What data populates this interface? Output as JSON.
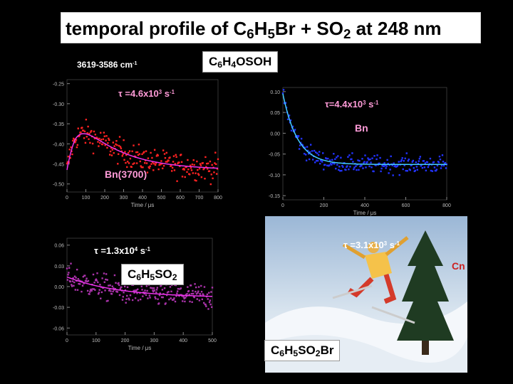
{
  "slide": {
    "title_parts": [
      "temporal profile of C",
      "6",
      "H",
      "5",
      "Br + SO",
      "2",
      " at 248 nm"
    ],
    "wavenumber": "3619-3586 cm",
    "wavenumber_sup": "-1",
    "labels": {
      "c6h4osoh": [
        "C",
        "6",
        "H",
        "4",
        "OSOH"
      ],
      "c6h5so2": [
        "C",
        "6",
        "H",
        "5",
        "SO",
        "2"
      ],
      "c6h5so2br": [
        "C",
        "6",
        "H",
        "5",
        "SO",
        "2",
        "Br"
      ]
    },
    "taus": {
      "a": {
        "prefix": "τ =4.6x10",
        "exp": "3",
        "unit": " s",
        "unit_exp": "-1"
      },
      "b": {
        "prefix": "τ=4.4x10",
        "exp": "3",
        "unit": " s",
        "unit_exp": "-1"
      },
      "c": {
        "prefix": "τ =1.3x10",
        "exp": "4",
        "unit": " s",
        "unit_exp": "-1"
      },
      "d": {
        "prefix": "τ =3.1x10",
        "exp": "3",
        "unit": " s",
        "unit_exp": "-1"
      }
    },
    "tags": {
      "bn": "Bn",
      "bn3700": "Bn(3700)",
      "cn": "Cn"
    },
    "colors": {
      "red": "#ff2222",
      "magenta": "#ee33ee",
      "blue": "#2233ff",
      "cyan": "#44ccff",
      "purple": "#aa33aa",
      "pink_text": "#ff9bd8"
    }
  },
  "chart_data": [
    {
      "type": "scatter",
      "xlabel": "Time / μs",
      "xticks": [
        "0",
        "100",
        "200",
        "300",
        "400",
        "500",
        "600",
        "700",
        "800"
      ],
      "yticks": [
        "-0.25",
        "-0.30",
        "-0.35",
        "-0.40",
        "-0.45",
        "-0.50"
      ],
      "xlim": [
        0,
        800
      ],
      "ylim": [
        -0.52,
        -0.24
      ],
      "series": [
        {
          "kind": "points",
          "color": "#ff2222"
        },
        {
          "kind": "fit",
          "color": "#ee33ee"
        }
      ],
      "fit": {
        "baseline": -0.465,
        "peak": -0.352,
        "peak_x": 150,
        "rise": 55,
        "decay_rate": 4600.0
      }
    },
    {
      "type": "scatter",
      "xlabel": "Time / μs",
      "xticks": [
        "0",
        "200",
        "400",
        "600",
        "800"
      ],
      "yticks": [
        "0.10",
        "0.05",
        "0.00",
        "-0.05",
        "-0.10",
        "-0.15"
      ],
      "xlim": [
        0,
        800
      ],
      "ylim": [
        -0.16,
        0.11
      ],
      "series": [
        {
          "kind": "points",
          "color": "#2233ff"
        },
        {
          "kind": "fit",
          "color": "#44ccff"
        }
      ],
      "fit": {
        "baseline": -0.075,
        "start": 0.095,
        "decay_rate": 4400.0
      }
    },
    {
      "type": "scatter",
      "xlabel": "Time / μs",
      "xticks": [
        "0",
        "100",
        "200",
        "300",
        "400",
        "500"
      ],
      "yticks": [
        "0.06",
        "0.03",
        "0.00",
        "-0.03",
        "-0.06"
      ],
      "xlim": [
        0,
        500
      ],
      "ylim": [
        -0.07,
        0.07
      ],
      "series": [
        {
          "kind": "points",
          "color": "#aa33aa"
        },
        {
          "kind": "fit",
          "color": "#ee33ee"
        }
      ]
    }
  ]
}
